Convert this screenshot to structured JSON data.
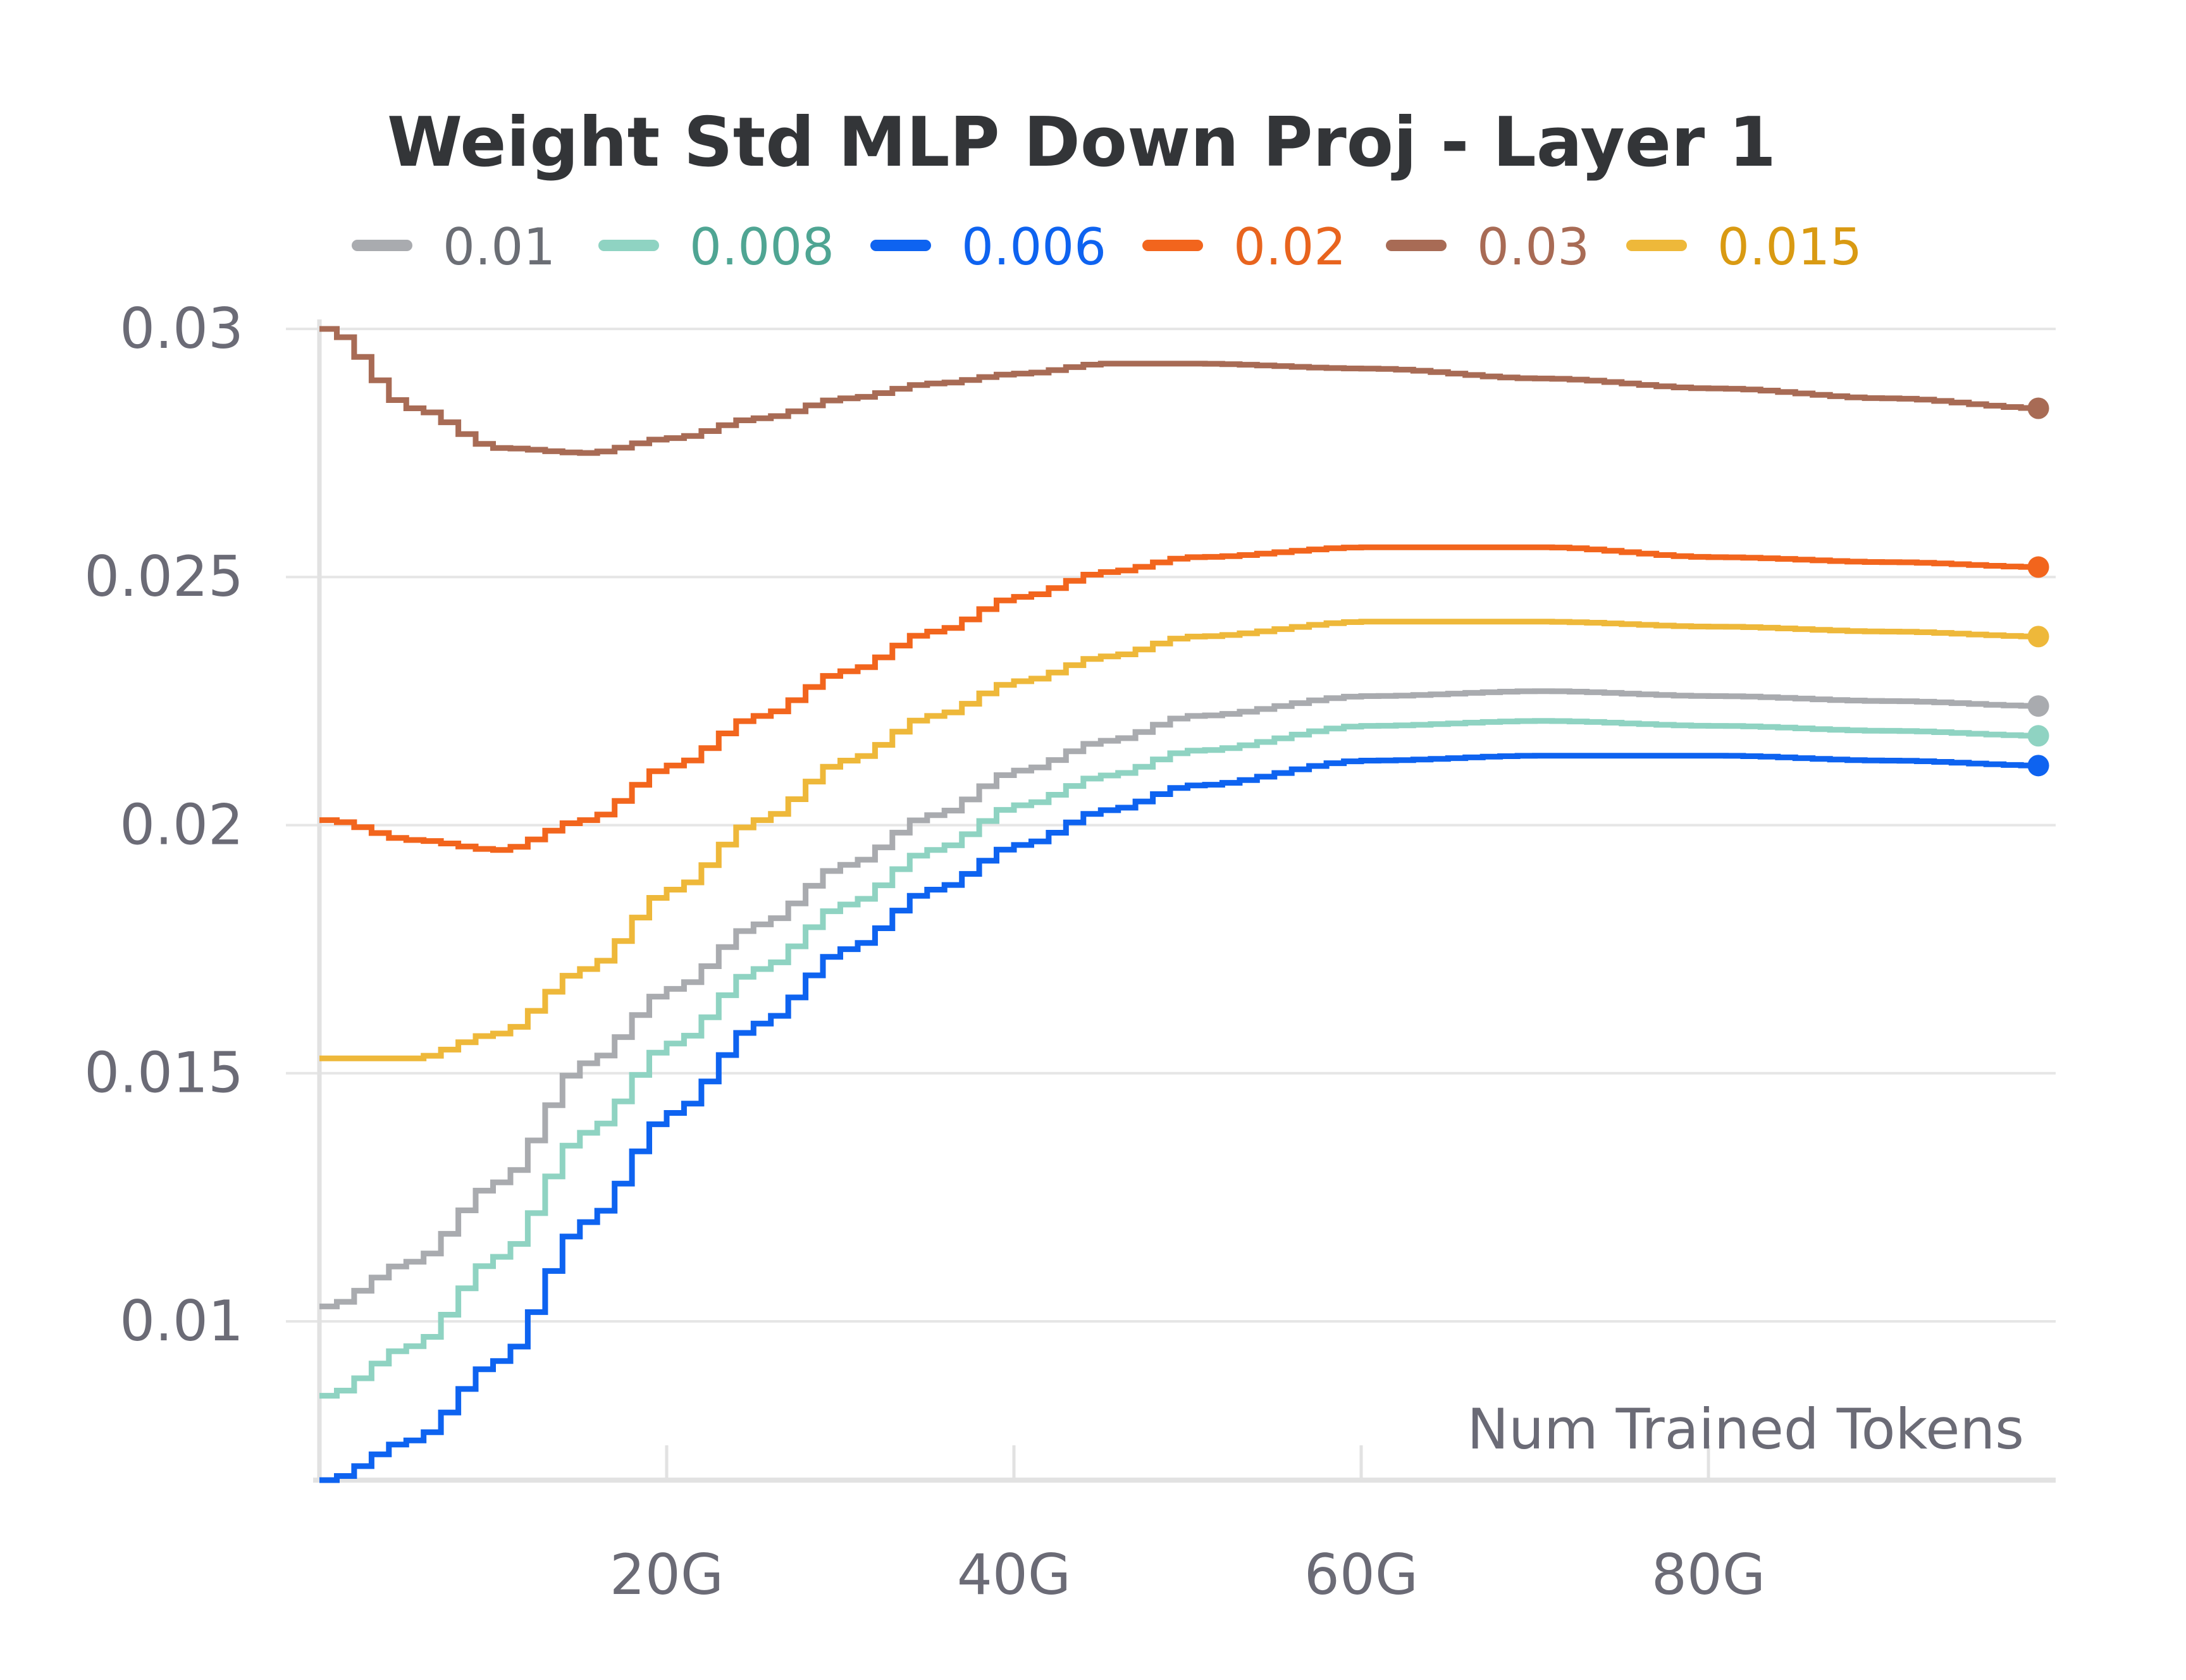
{
  "chart_data": {
    "type": "line",
    "title": "Weight Std MLP Down Proj - Layer 1",
    "xlabel": "Num Trained Tokens",
    "ylabel": "",
    "x_unit": "G tokens",
    "xlim": [
      0,
      100
    ],
    "ylim": [
      0.0068,
      0.03
    ],
    "x_ticks": [
      20,
      40,
      60,
      80
    ],
    "x_tick_labels": [
      "20G",
      "40G",
      "60G",
      "80G"
    ],
    "y_ticks": [
      0.01,
      0.015,
      0.02,
      0.025,
      0.03
    ],
    "y_tick_labels": [
      "0.01",
      "0.015",
      "0.02",
      "0.025",
      "0.03"
    ],
    "grid": true,
    "legend_position": "top",
    "line_style": "step",
    "x": [
      0,
      5,
      10,
      15,
      20,
      25,
      30,
      35,
      40,
      45,
      50,
      60,
      70,
      80,
      90,
      99
    ],
    "series": [
      {
        "name": "0.01",
        "color": "#a9abaf",
        "legend_text_color": "#6b6e75",
        "values": [
          0.0103,
          0.0112,
          0.0128,
          0.0152,
          0.0167,
          0.018,
          0.0192,
          0.0202,
          0.0211,
          0.0217,
          0.0222,
          0.0226,
          0.0227,
          0.0226,
          0.0225,
          0.0224
        ]
      },
      {
        "name": "0.008",
        "color": "#8fd3c2",
        "legend_text_color": "#4fa593",
        "values": [
          0.0085,
          0.0095,
          0.0113,
          0.0138,
          0.0156,
          0.0171,
          0.0184,
          0.0195,
          0.0204,
          0.021,
          0.0215,
          0.022,
          0.0221,
          0.022,
          0.0219,
          0.0218
        ]
      },
      {
        "name": "0.006",
        "color": "#0e63f0",
        "legend_text_color": "#0e63f0",
        "values": [
          0.0068,
          0.0076,
          0.0092,
          0.012,
          0.0142,
          0.016,
          0.0175,
          0.0187,
          0.0196,
          0.0203,
          0.0208,
          0.0213,
          0.0214,
          0.0214,
          0.0213,
          0.0212
        ]
      },
      {
        "name": "0.02",
        "color": "#f2651d",
        "legend_text_color": "#e8641e",
        "values": [
          0.0201,
          0.0197,
          0.0195,
          0.0201,
          0.0212,
          0.0222,
          0.0231,
          0.0239,
          0.0246,
          0.0251,
          0.0254,
          0.0256,
          0.0256,
          0.0254,
          0.0253,
          0.0252
        ]
      },
      {
        "name": "0.03",
        "color": "#a86b55",
        "legend_text_color": "#a86b55",
        "values": [
          0.03,
          0.0284,
          0.0276,
          0.0275,
          0.0278,
          0.0282,
          0.0286,
          0.0289,
          0.0291,
          0.0293,
          0.0293,
          0.0292,
          0.029,
          0.0288,
          0.0286,
          0.0284
        ]
      },
      {
        "name": "0.015",
        "color": "#eeb83a",
        "legend_text_color": "#d99a12",
        "values": [
          0.0153,
          0.0153,
          0.0158,
          0.0171,
          0.0187,
          0.0201,
          0.0213,
          0.0222,
          0.0229,
          0.0234,
          0.0238,
          0.0241,
          0.0241,
          0.024,
          0.0239,
          0.0238
        ]
      }
    ]
  }
}
